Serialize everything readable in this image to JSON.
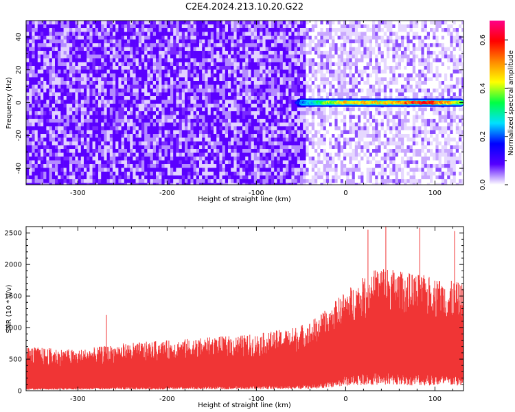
{
  "title": "C2E4.2024.213.10.20.G22",
  "chart_data": [
    {
      "type": "heatmap",
      "xlabel": "Height of straight line (km)",
      "ylabel": "Frequency (Hz)",
      "xlim": [
        -358,
        132
      ],
      "ylim": [
        -50,
        50
      ],
      "x_ticks": [
        -300,
        -200,
        -100,
        0,
        100
      ],
      "x_tick_labels": [
        "-300",
        "-200",
        "-100",
        "0",
        "100"
      ],
      "y_ticks": [
        -40,
        -20,
        0,
        20,
        40
      ],
      "y_tick_labels": [
        "-40",
        "-20",
        "0",
        "20",
        "40"
      ],
      "colorbar": {
        "label": "Normalized spectral amplitude",
        "range": [
          0,
          0.68
        ],
        "ticks": [
          0,
          0.2,
          0.4,
          0.6
        ],
        "tick_labels": [
          "0.0",
          "0.2",
          "0.4",
          "0.6"
        ],
        "colors": [
          "#ffffff",
          "#5500ff",
          "#0000ff",
          "#00e0ff",
          "#00ff44",
          "#ffff00",
          "#ff8800",
          "#ff0000",
          "#ff0088"
        ]
      },
      "background_levels": [
        {
          "x_range": [
            -358,
            -45
          ],
          "typical_value": 0.04
        },
        {
          "x_range": [
            -45,
            132
          ],
          "typical_value": 0.01
        }
      ],
      "signal_track": {
        "frequency": 0,
        "x": [
          -55,
          -45,
          -30,
          -20,
          0,
          20,
          40,
          60,
          75,
          85,
          100,
          120,
          132
        ],
        "peak_value": [
          0.2,
          0.25,
          0.35,
          0.45,
          0.5,
          0.55,
          0.5,
          0.55,
          0.65,
          0.65,
          0.6,
          0.5,
          0.45
        ]
      }
    },
    {
      "type": "area",
      "xlabel": "Height of straight line (km)",
      "ylabel": "SNR (10 * v/v)",
      "xlim": [
        -358,
        132
      ],
      "ylim": [
        0,
        2600
      ],
      "x_ticks": [
        -300,
        -200,
        -100,
        0,
        100
      ],
      "x_tick_labels": [
        "-300",
        "-200",
        "-100",
        "0",
        "100"
      ],
      "y_ticks": [
        0,
        500,
        1000,
        1500,
        2000,
        2500
      ],
      "y_tick_labels": [
        "0",
        "500",
        "1000",
        "1500",
        "2000",
        "2500"
      ],
      "color": "#f03535",
      "envelope": {
        "x": [
          -358,
          -300,
          -250,
          -200,
          -150,
          -100,
          -60,
          -40,
          -20,
          0,
          20,
          40,
          60,
          80,
          100,
          132
        ],
        "max": [
          700,
          650,
          750,
          800,
          850,
          900,
          1000,
          1100,
          1300,
          1600,
          1800,
          2000,
          1900,
          1850,
          1800,
          1700
        ],
        "min": [
          50,
          50,
          60,
          60,
          70,
          80,
          90,
          100,
          150,
          250,
          300,
          300,
          280,
          280,
          260,
          250
        ]
      },
      "spikes": [
        {
          "x": -268,
          "y": 1200
        },
        {
          "x": 25,
          "y": 2550
        },
        {
          "x": 45,
          "y": 2600
        },
        {
          "x": 83,
          "y": 2580
        },
        {
          "x": 122,
          "y": 2530
        }
      ]
    }
  ]
}
